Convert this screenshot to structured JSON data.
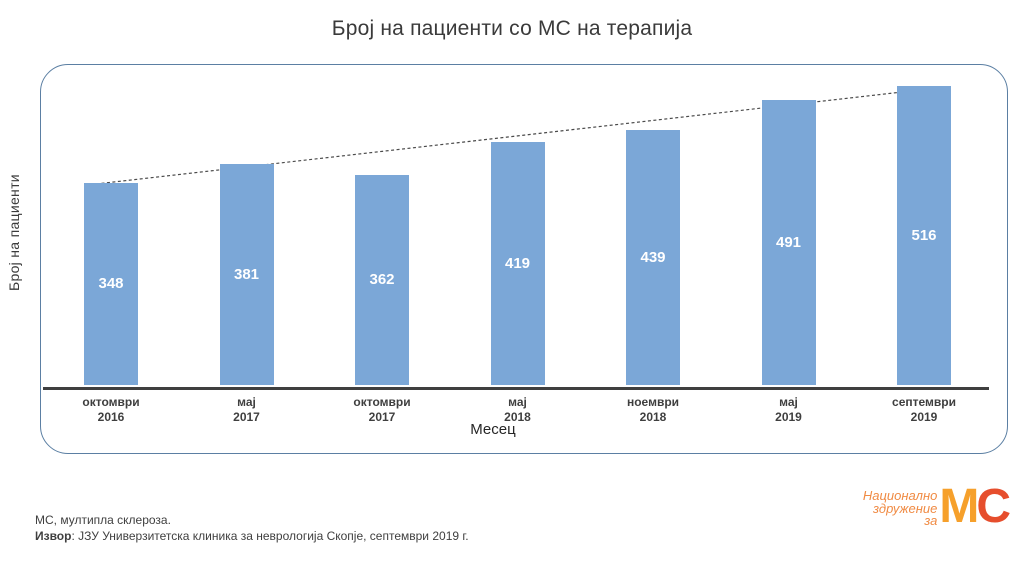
{
  "page_title": "Број на пациенти со МС на терапија",
  "chart_data": {
    "type": "bar",
    "title": "Број на пациенти со МС на терапија",
    "categories": [
      "октомври 2016",
      "мај 2017",
      "октомври 2017",
      "мај 2018",
      "ноември 2018",
      "мај 2019",
      "септември 2019"
    ],
    "category_lines": [
      [
        "октомври",
        "2016"
      ],
      [
        "мај",
        "2017"
      ],
      [
        "октомври",
        "2017"
      ],
      [
        "мај",
        "2018"
      ],
      [
        "ноември",
        "2018"
      ],
      [
        "мај",
        "2019"
      ],
      [
        "септември",
        "2019"
      ]
    ],
    "values": [
      348,
      381,
      362,
      419,
      439,
      491,
      516
    ],
    "xlabel": "Месец",
    "ylabel": "Број на пациенти",
    "ylim": [
      0,
      560
    ],
    "bar_color": "#7BA7D7",
    "value_label_color": "#FFFFFF",
    "trendline": true,
    "trendline_style": "dashed",
    "gridlines": false,
    "legend": "none"
  },
  "footnote": {
    "line1": "МС, мултипла склероза.",
    "source_label": "Извор",
    "source_rest": ": ЈЗУ Универзитетска клиника за неврологија Скопје, септември 2019 г."
  },
  "logo": {
    "org_line1": "Национално",
    "org_line2": "здружение",
    "org_line3": "за",
    "mark_m": "М",
    "mark_c": "С",
    "accent_color": "#F08B44",
    "mark_m_color": "#F6A02B",
    "mark_c_color": "#E64E2D"
  },
  "colors": {
    "bar": "#7BA7D7",
    "panel_border": "#5B7FA3",
    "axis_line": "#3F3F3F",
    "trendline": "#4A4A4A",
    "text": "#3A3A3A"
  }
}
